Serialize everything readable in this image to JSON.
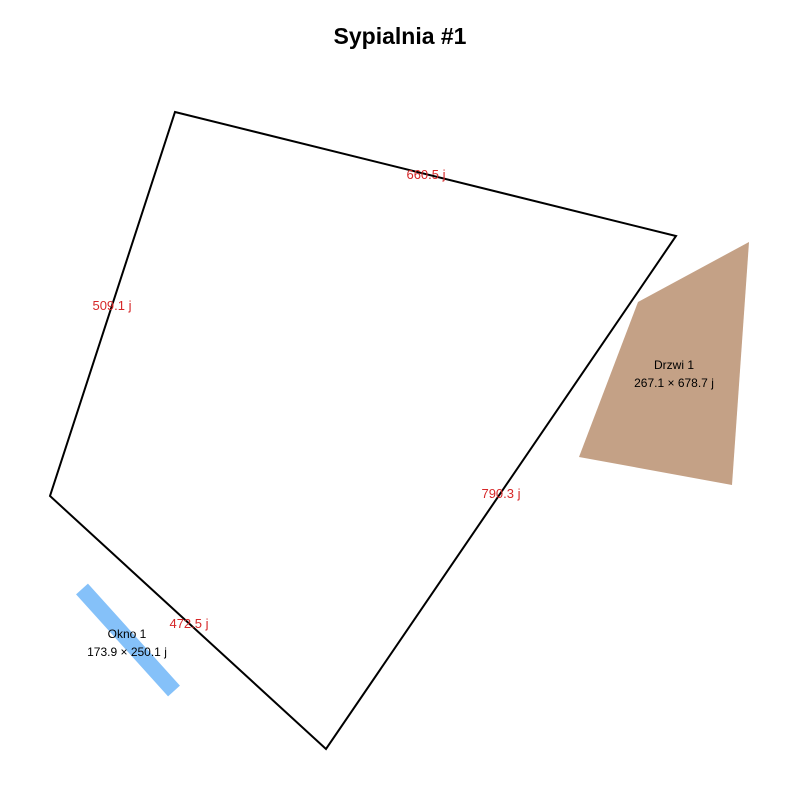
{
  "title": "Sypialnia #1",
  "room": {
    "walls": [
      {
        "label": "660.5 j"
      },
      {
        "label": "790.3 j"
      },
      {
        "label": "472.5 j"
      },
      {
        "label": "509.1 j"
      }
    ],
    "color_outline": "#000000",
    "color_dimension_text": "#d62728"
  },
  "door": {
    "name": "Drzwi 1",
    "size": "267.1 × 678.7 j",
    "color": "#c4a186"
  },
  "window": {
    "name": "Okno 1",
    "size": "173.9 × 250.1 j",
    "color": "#85c1f9"
  }
}
